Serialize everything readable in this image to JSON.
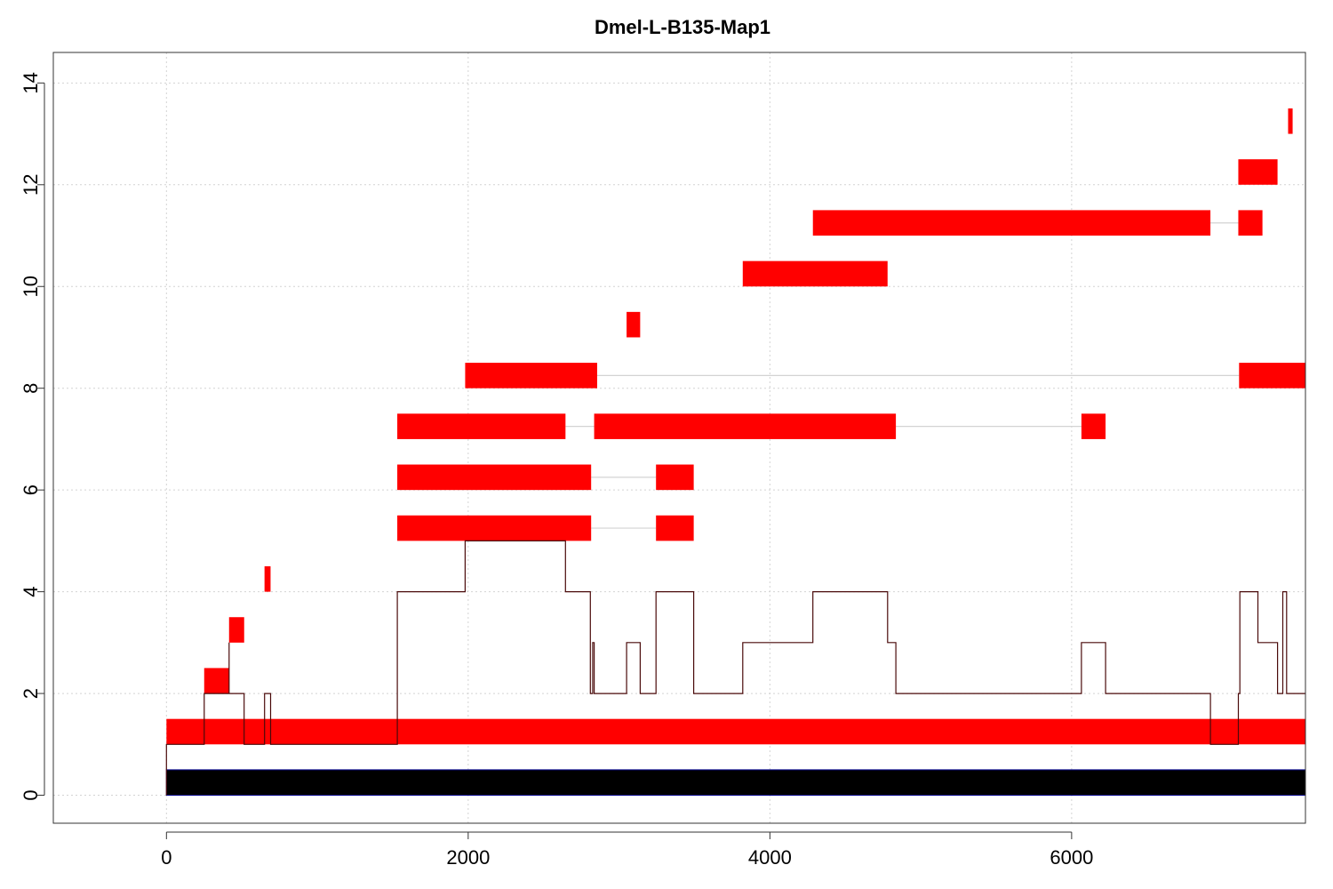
{
  "chart_data": {
    "type": "bar",
    "title": "Dmel-L-B135-Map1",
    "xlabel": "",
    "ylabel": "",
    "xlim": [
      -750,
      7550
    ],
    "ylim": [
      -0.55,
      14.6
    ],
    "x_ticks": [
      0,
      2000,
      4000,
      6000
    ],
    "y_ticks": [
      0,
      2,
      4,
      6,
      8,
      10,
      12,
      14
    ],
    "grid": true,
    "colors": {
      "reference": "#000000",
      "alignment": "#ff0000",
      "coverage": "#4a0a0a",
      "connector": "#d3d3d3",
      "grid": "#d3d3d3"
    },
    "reference": {
      "start": 0,
      "end": 7550,
      "y_low": 0,
      "y_high": 0.5
    },
    "alignments": [
      {
        "row": 1,
        "segments": [
          [
            0,
            7550
          ]
        ]
      },
      {
        "row": 2,
        "segments": [
          [
            250,
            415
          ]
        ]
      },
      {
        "row": 3,
        "segments": [
          [
            415,
            515
          ]
        ]
      },
      {
        "row": 4,
        "segments": [
          [
            650,
            690
          ]
        ]
      },
      {
        "row": 5,
        "segments": [
          [
            1530,
            2815
          ],
          [
            3245,
            3495
          ]
        ]
      },
      {
        "row": 6,
        "segments": [
          [
            1530,
            2815
          ],
          [
            3245,
            3495
          ]
        ]
      },
      {
        "row": 7,
        "segments": [
          [
            1530,
            2645
          ],
          [
            2835,
            4835
          ],
          [
            6065,
            6225
          ]
        ]
      },
      {
        "row": 8,
        "segments": [
          [
            1980,
            2855
          ],
          [
            7110,
            7550
          ]
        ]
      },
      {
        "row": 9,
        "segments": [
          [
            3050,
            3140
          ]
        ]
      },
      {
        "row": 10,
        "segments": [
          [
            3820,
            4780
          ]
        ]
      },
      {
        "row": 11,
        "segments": [
          [
            4285,
            6920
          ],
          [
            7105,
            7265
          ]
        ]
      },
      {
        "row": 12,
        "segments": [
          [
            7105,
            7365
          ]
        ]
      },
      {
        "row": 13,
        "segments": [
          [
            7435,
            7465
          ]
        ]
      }
    ],
    "coverage": [
      [
        0,
        0
      ],
      [
        0,
        1
      ],
      [
        250,
        1
      ],
      [
        250,
        2
      ],
      [
        415,
        2
      ],
      [
        415,
        3
      ],
      [
        415,
        2
      ],
      [
        515,
        2
      ],
      [
        515,
        1
      ],
      [
        650,
        1
      ],
      [
        650,
        2
      ],
      [
        690,
        2
      ],
      [
        690,
        1
      ],
      [
        1530,
        1
      ],
      [
        1530,
        4
      ],
      [
        1980,
        4
      ],
      [
        1980,
        5
      ],
      [
        2645,
        5
      ],
      [
        2645,
        4
      ],
      [
        2810,
        4
      ],
      [
        2810,
        2
      ],
      [
        2825,
        2
      ],
      [
        2825,
        3
      ],
      [
        2835,
        3
      ],
      [
        2835,
        2
      ],
      [
        3050,
        2
      ],
      [
        3050,
        3
      ],
      [
        3140,
        3
      ],
      [
        3140,
        2
      ],
      [
        3245,
        2
      ],
      [
        3245,
        4
      ],
      [
        3495,
        4
      ],
      [
        3495,
        2
      ],
      [
        3820,
        2
      ],
      [
        3820,
        3
      ],
      [
        4285,
        3
      ],
      [
        4285,
        4
      ],
      [
        4780,
        4
      ],
      [
        4780,
        3
      ],
      [
        4835,
        3
      ],
      [
        4835,
        2
      ],
      [
        6065,
        2
      ],
      [
        6065,
        3
      ],
      [
        6225,
        3
      ],
      [
        6225,
        2
      ],
      [
        6920,
        2
      ],
      [
        6920,
        1
      ],
      [
        7105,
        1
      ],
      [
        7105,
        2
      ],
      [
        7115,
        2
      ],
      [
        7115,
        4
      ],
      [
        7235,
        4
      ],
      [
        7235,
        3
      ],
      [
        7365,
        3
      ],
      [
        7365,
        2
      ],
      [
        7400,
        2
      ],
      [
        7400,
        4
      ],
      [
        7425,
        4
      ],
      [
        7425,
        2
      ],
      [
        7550,
        2
      ]
    ]
  }
}
